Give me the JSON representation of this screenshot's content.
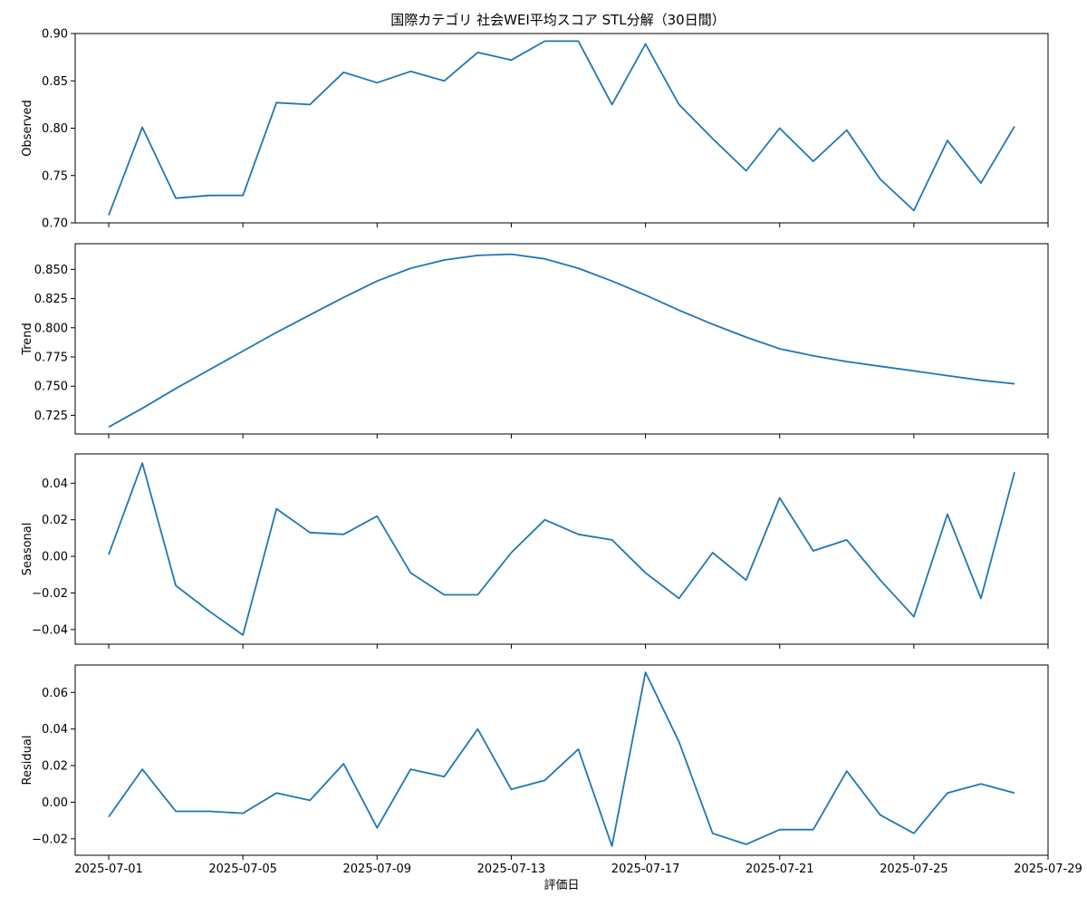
{
  "chart_data": {
    "type": "line",
    "title": "国際カテゴリ 社会WEI平均スコア STL分解（30日間）",
    "xlabel": "評価日",
    "x": [
      "2025-07-01",
      "2025-07-02",
      "2025-07-03",
      "2025-07-04",
      "2025-07-05",
      "2025-07-06",
      "2025-07-07",
      "2025-07-08",
      "2025-07-09",
      "2025-07-10",
      "2025-07-11",
      "2025-07-12",
      "2025-07-13",
      "2025-07-14",
      "2025-07-15",
      "2025-07-16",
      "2025-07-17",
      "2025-07-18",
      "2025-07-19",
      "2025-07-20",
      "2025-07-21",
      "2025-07-22",
      "2025-07-23",
      "2025-07-24",
      "2025-07-25",
      "2025-07-26",
      "2025-07-27",
      "2025-07-28"
    ],
    "xticks": [
      "2025-07-01",
      "2025-07-05",
      "2025-07-09",
      "2025-07-13",
      "2025-07-17",
      "2025-07-21",
      "2025-07-25",
      "2025-07-29"
    ],
    "xlim": [
      "2025-06-30",
      "2025-07-29"
    ],
    "color": "#1f77b4",
    "panels": [
      {
        "ylabel": "Observed",
        "ylim": [
          0.7,
          0.9
        ],
        "yticks": [
          0.7,
          0.75,
          0.8,
          0.85,
          0.9
        ],
        "tick_format": 2,
        "values": [
          0.708,
          0.801,
          0.726,
          0.729,
          0.729,
          0.827,
          0.825,
          0.859,
          0.848,
          0.86,
          0.85,
          0.88,
          0.872,
          0.892,
          0.892,
          0.825,
          0.889,
          0.825,
          0.789,
          0.755,
          0.8,
          0.765,
          0.798,
          0.746,
          0.713,
          0.787,
          0.742,
          0.802
        ]
      },
      {
        "ylabel": "Trend",
        "ylim": [
          0.709,
          0.872
        ],
        "yticks": [
          0.725,
          0.75,
          0.775,
          0.8,
          0.825,
          0.85
        ],
        "tick_format": 3,
        "values": [
          0.715,
          0.731,
          0.748,
          0.764,
          0.78,
          0.796,
          0.811,
          0.826,
          0.84,
          0.851,
          0.858,
          0.862,
          0.863,
          0.859,
          0.851,
          0.84,
          0.828,
          0.815,
          0.803,
          0.792,
          0.782,
          0.776,
          0.771,
          0.767,
          0.763,
          0.759,
          0.755,
          0.752
        ]
      },
      {
        "ylabel": "Seasonal",
        "ylim": [
          -0.048,
          0.056
        ],
        "yticks": [
          -0.04,
          -0.02,
          0.0,
          0.02,
          0.04
        ],
        "tick_format": 2,
        "values": [
          0.001,
          0.051,
          -0.016,
          -0.03,
          -0.043,
          0.026,
          0.013,
          0.012,
          0.022,
          -0.009,
          -0.021,
          -0.021,
          0.002,
          0.02,
          0.012,
          0.009,
          -0.009,
          -0.023,
          0.002,
          -0.013,
          0.032,
          0.003,
          0.009,
          -0.013,
          -0.033,
          0.023,
          -0.023,
          0.046
        ]
      },
      {
        "ylabel": "Residual",
        "ylim": [
          -0.029,
          0.075
        ],
        "yticks": [
          -0.02,
          0.0,
          0.02,
          0.04,
          0.06
        ],
        "tick_format": 2,
        "values": [
          -0.008,
          0.018,
          -0.005,
          -0.005,
          -0.006,
          0.005,
          0.001,
          0.021,
          -0.014,
          0.018,
          0.014,
          0.04,
          0.007,
          0.012,
          0.029,
          -0.024,
          0.071,
          0.033,
          -0.017,
          -0.023,
          -0.015,
          -0.015,
          0.017,
          -0.007,
          -0.017,
          0.005,
          0.01,
          0.005
        ]
      }
    ]
  }
}
